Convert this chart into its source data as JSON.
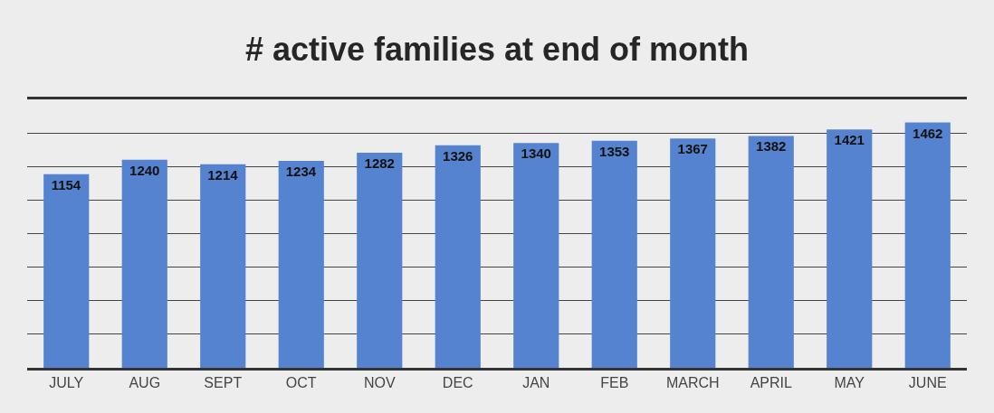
{
  "chart_data": {
    "type": "bar",
    "title": "# active families at end of month",
    "categories": [
      "JULY",
      "AUG",
      "SEPT",
      "OCT",
      "NOV",
      "DEC",
      "JAN",
      "FEB",
      "MARCH",
      "APRIL",
      "MAY",
      "JUNE"
    ],
    "values": [
      1154,
      1240,
      1214,
      1234,
      1282,
      1326,
      1340,
      1353,
      1367,
      1382,
      1421,
      1462
    ],
    "color": "#5683cf",
    "ylim": [
      0,
      1600
    ],
    "yticks": [
      {
        "value": 0,
        "label": null
      },
      {
        "value": 200,
        "label": null
      },
      {
        "value": 400,
        "label": null
      },
      {
        "value": 600,
        "label": null
      },
      {
        "value": 800,
        "label": null
      },
      {
        "value": 1000,
        "label": null
      },
      {
        "value": 1200,
        "label": null
      },
      {
        "value": 1400,
        "label": null
      }
    ],
    "tick_labels": "x",
    "grid": "y",
    "data_labels": true,
    "legend": false
  }
}
